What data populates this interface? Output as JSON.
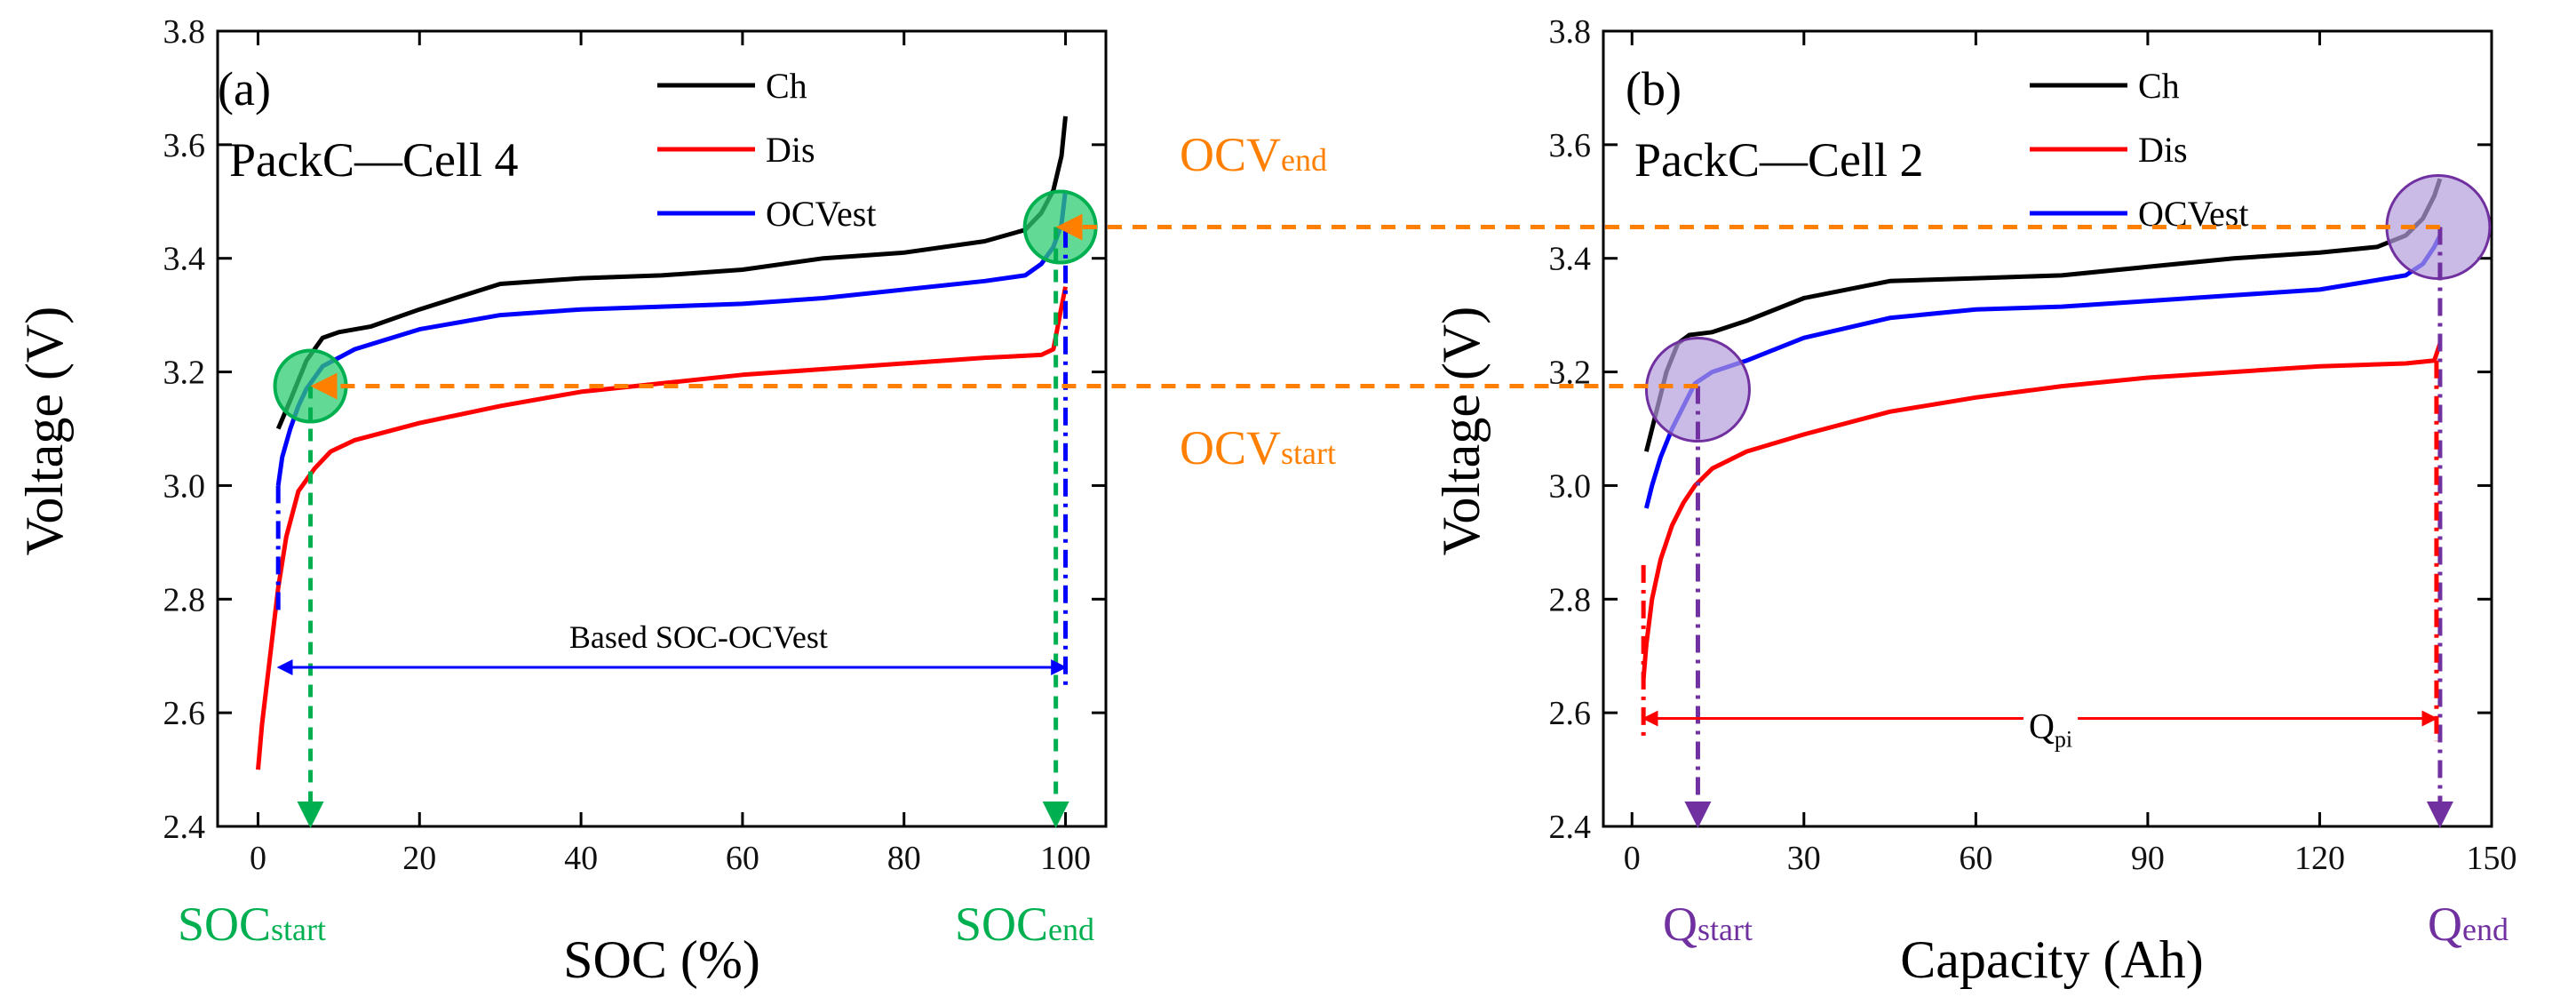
{
  "chart_data": [
    {
      "type": "line",
      "panel_label": "(a)",
      "subtitle": "PackC—Cell 4",
      "xlabel": "SOC (%)",
      "ylabel": "Voltage (V)",
      "xlim": [
        -5,
        105
      ],
      "ylim": [
        2.4,
        3.8
      ],
      "xticks": [
        "0",
        "20",
        "40",
        "60",
        "80",
        "100"
      ],
      "yticks": [
        "2.4",
        "2.6",
        "2.8",
        "3.0",
        "3.2",
        "3.4",
        "3.6",
        "3.8"
      ],
      "grid": false,
      "legend_position": "top-center",
      "series": [
        {
          "name": "Ch",
          "color": "#000000",
          "x": [
            2.5,
            4,
            6,
            8,
            10,
            14,
            20,
            30,
            40,
            50,
            60,
            70,
            80,
            90,
            95,
            97,
            98.5,
            99.5,
            100
          ],
          "y": [
            3.1,
            3.15,
            3.22,
            3.26,
            3.27,
            3.28,
            3.31,
            3.355,
            3.365,
            3.37,
            3.38,
            3.4,
            3.41,
            3.43,
            3.45,
            3.48,
            3.52,
            3.58,
            3.65
          ]
        },
        {
          "name": "Dis",
          "color": "#ff0000",
          "x": [
            0,
            0.5,
            1.5,
            2.5,
            3.5,
            5,
            7,
            9,
            12,
            16,
            20,
            30,
            40,
            50,
            60,
            70,
            80,
            90,
            97,
            98.5,
            99.3,
            100
          ],
          "y": [
            2.5,
            2.58,
            2.7,
            2.82,
            2.91,
            2.99,
            3.03,
            3.06,
            3.08,
            3.095,
            3.11,
            3.14,
            3.165,
            3.18,
            3.195,
            3.205,
            3.215,
            3.225,
            3.23,
            3.24,
            3.3,
            3.35
          ]
        },
        {
          "name": "OCVest",
          "color": "#0000ff",
          "x": [
            2.5,
            3,
            4,
            5,
            6,
            8,
            12,
            20,
            30,
            40,
            50,
            60,
            70,
            80,
            90,
            95,
            97,
            98.5,
            99.5,
            100
          ],
          "y": [
            3.0,
            3.05,
            3.1,
            3.14,
            3.17,
            3.21,
            3.24,
            3.275,
            3.3,
            3.31,
            3.315,
            3.32,
            3.33,
            3.345,
            3.36,
            3.37,
            3.39,
            3.42,
            3.46,
            3.52
          ]
        }
      ],
      "annotations": {
        "ocv_label_main": "OCV",
        "ocv_end_sub": "end",
        "ocv_start_sub": "start",
        "soc_label_main": "SOC",
        "soc_start_sub": "start",
        "soc_end_sub": "end",
        "range_label": "Based SOC-OCVest",
        "ocv_end_value": 3.455,
        "ocv_start_value": 3.175,
        "soc_start_value": 6.5,
        "soc_end_value": 98.8,
        "range_from": 2.5,
        "range_to": 100,
        "range_y": 2.68
      }
    },
    {
      "type": "line",
      "panel_label": "(b)",
      "subtitle": "PackC—Cell 2",
      "xlabel": "Capacity (Ah)",
      "ylabel": "Voltage (V)",
      "xlim": [
        -5,
        150
      ],
      "ylim": [
        2.4,
        3.8
      ],
      "xticks": [
        "0",
        "30",
        "60",
        "90",
        "120",
        "150"
      ],
      "yticks": [
        "2.4",
        "2.6",
        "2.8",
        "3.0",
        "3.2",
        "3.4",
        "3.6",
        "3.8"
      ],
      "grid": false,
      "legend_position": "top-center",
      "series": [
        {
          "name": "Ch",
          "color": "#000000",
          "x": [
            2.5,
            4,
            6,
            8,
            10,
            14,
            20,
            30,
            45,
            60,
            75,
            90,
            105,
            120,
            130,
            135,
            138,
            140,
            141
          ],
          "y": [
            3.06,
            3.12,
            3.2,
            3.25,
            3.265,
            3.27,
            3.29,
            3.33,
            3.36,
            3.365,
            3.37,
            3.385,
            3.4,
            3.41,
            3.42,
            3.44,
            3.47,
            3.51,
            3.54
          ]
        },
        {
          "name": "Dis",
          "color": "#ff0000",
          "x": [
            2,
            2.5,
            3.5,
            5,
            7,
            9,
            11,
            14,
            20,
            30,
            45,
            60,
            75,
            90,
            105,
            120,
            135,
            140,
            141
          ],
          "y": [
            2.66,
            2.72,
            2.8,
            2.87,
            2.93,
            2.97,
            3.0,
            3.03,
            3.06,
            3.09,
            3.13,
            3.155,
            3.175,
            3.19,
            3.2,
            3.21,
            3.215,
            3.22,
            3.25
          ]
        },
        {
          "name": "OCVest",
          "color": "#0000ff",
          "x": [
            2.5,
            3.5,
            5,
            7,
            9,
            11,
            14,
            20,
            30,
            45,
            60,
            75,
            90,
            105,
            120,
            135,
            138,
            140,
            141
          ],
          "y": [
            2.96,
            3.0,
            3.05,
            3.1,
            3.14,
            3.18,
            3.2,
            3.22,
            3.26,
            3.295,
            3.31,
            3.315,
            3.325,
            3.335,
            3.345,
            3.37,
            3.39,
            3.42,
            3.44
          ]
        }
      ],
      "annotations": {
        "q_label_main": "Q",
        "q_start_sub": "start",
        "q_end_sub": "end",
        "range_label_main": "Q",
        "range_label_sub": "pi",
        "q_start_value": 11.5,
        "q_end_value": 141,
        "range_from": 2,
        "range_to": 141,
        "range_y": 2.59
      }
    }
  ],
  "colors": {
    "orange": "#ff7f00",
    "green": "#00b050",
    "purple": "#7030a0",
    "blue": "#0000ff",
    "red": "#ff0000",
    "circle_green_fill": "#2ecc71",
    "circle_purple_fill": "#b39ddb"
  }
}
